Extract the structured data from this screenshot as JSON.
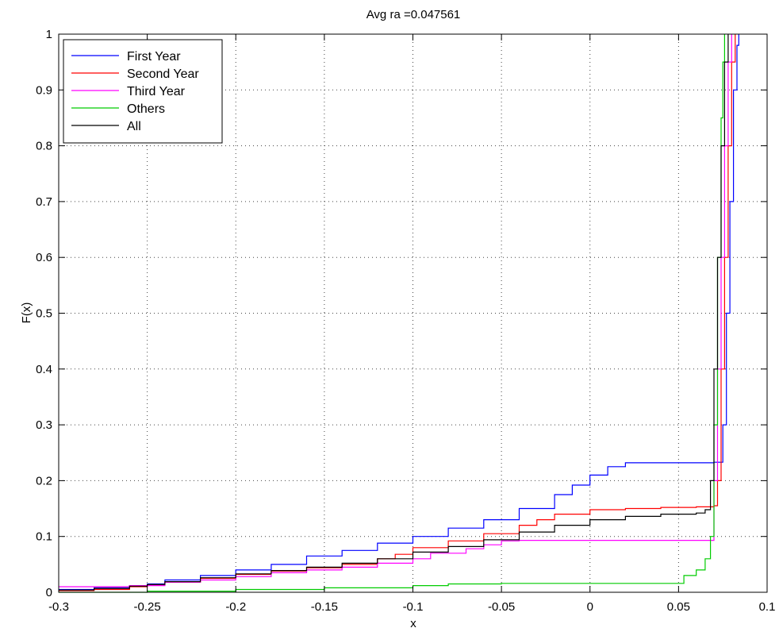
{
  "chart_data": {
    "type": "line",
    "title": "Avg ra =0.047561",
    "xlabel": "x",
    "ylabel": "F(x)",
    "xlim": [
      -0.3,
      0.1
    ],
    "ylim": [
      0,
      1
    ],
    "x_ticks": [
      "-0.3",
      "-0.25",
      "-0.2",
      "-0.15",
      "-0.1",
      "-0.05",
      "0",
      "0.05",
      "0.1"
    ],
    "x_tick_values": [
      -0.3,
      -0.25,
      -0.2,
      -0.15,
      -0.1,
      -0.05,
      0,
      0.05,
      0.1
    ],
    "y_ticks": [
      "0",
      "0.1",
      "0.2",
      "0.3",
      "0.4",
      "0.5",
      "0.6",
      "0.7",
      "0.8",
      "0.9",
      "1"
    ],
    "y_tick_values": [
      0,
      0.1,
      0.2,
      0.3,
      0.4,
      0.5,
      0.6,
      0.7,
      0.8,
      0.9,
      1
    ],
    "grid": true,
    "legend_position": "top-left",
    "series": [
      {
        "name": "First Year",
        "color": "#0000ff",
        "points": [
          [
            -0.3,
            0.005
          ],
          [
            -0.28,
            0.008
          ],
          [
            -0.26,
            0.012
          ],
          [
            -0.25,
            0.015
          ],
          [
            -0.24,
            0.022
          ],
          [
            -0.22,
            0.03
          ],
          [
            -0.2,
            0.04
          ],
          [
            -0.18,
            0.05
          ],
          [
            -0.16,
            0.065
          ],
          [
            -0.14,
            0.075
          ],
          [
            -0.12,
            0.088
          ],
          [
            -0.1,
            0.1
          ],
          [
            -0.08,
            0.115
          ],
          [
            -0.06,
            0.13
          ],
          [
            -0.04,
            0.15
          ],
          [
            -0.02,
            0.175
          ],
          [
            -0.01,
            0.192
          ],
          [
            0.0,
            0.21
          ],
          [
            0.01,
            0.225
          ],
          [
            0.02,
            0.232
          ],
          [
            0.04,
            0.232
          ],
          [
            0.06,
            0.232
          ],
          [
            0.07,
            0.233
          ],
          [
            0.075,
            0.3
          ],
          [
            0.077,
            0.5
          ],
          [
            0.079,
            0.7
          ],
          [
            0.081,
            0.9
          ],
          [
            0.083,
            0.98
          ],
          [
            0.084,
            1.0
          ]
        ]
      },
      {
        "name": "Second Year",
        "color": "#ff0000",
        "points": [
          [
            -0.3,
            0.003
          ],
          [
            -0.28,
            0.005
          ],
          [
            -0.26,
            0.01
          ],
          [
            -0.25,
            0.013
          ],
          [
            -0.24,
            0.018
          ],
          [
            -0.22,
            0.025
          ],
          [
            -0.2,
            0.032
          ],
          [
            -0.18,
            0.038
          ],
          [
            -0.16,
            0.044
          ],
          [
            -0.14,
            0.05
          ],
          [
            -0.12,
            0.06
          ],
          [
            -0.11,
            0.068
          ],
          [
            -0.1,
            0.08
          ],
          [
            -0.08,
            0.092
          ],
          [
            -0.06,
            0.105
          ],
          [
            -0.04,
            0.12
          ],
          [
            -0.03,
            0.13
          ],
          [
            -0.02,
            0.14
          ],
          [
            0.0,
            0.148
          ],
          [
            0.02,
            0.15
          ],
          [
            0.04,
            0.152
          ],
          [
            0.06,
            0.153
          ],
          [
            0.07,
            0.155
          ],
          [
            0.072,
            0.2
          ],
          [
            0.074,
            0.4
          ],
          [
            0.076,
            0.6
          ],
          [
            0.078,
            0.8
          ],
          [
            0.08,
            0.95
          ],
          [
            0.082,
            1.0
          ]
        ]
      },
      {
        "name": "Third Year",
        "color": "#ff00ff",
        "points": [
          [
            -0.3,
            0.01
          ],
          [
            -0.26,
            0.012
          ],
          [
            -0.24,
            0.018
          ],
          [
            -0.22,
            0.022
          ],
          [
            -0.2,
            0.028
          ],
          [
            -0.18,
            0.035
          ],
          [
            -0.16,
            0.04
          ],
          [
            -0.14,
            0.045
          ],
          [
            -0.12,
            0.052
          ],
          [
            -0.1,
            0.06
          ],
          [
            -0.09,
            0.07
          ],
          [
            -0.07,
            0.078
          ],
          [
            -0.06,
            0.085
          ],
          [
            -0.05,
            0.092
          ],
          [
            -0.04,
            0.093
          ],
          [
            -0.02,
            0.093
          ],
          [
            0.0,
            0.093
          ],
          [
            0.02,
            0.093
          ],
          [
            0.04,
            0.093
          ],
          [
            0.06,
            0.093
          ],
          [
            0.068,
            0.093
          ],
          [
            0.07,
            0.2
          ],
          [
            0.072,
            0.4
          ],
          [
            0.074,
            0.6
          ],
          [
            0.076,
            0.8
          ],
          [
            0.078,
            0.95
          ],
          [
            0.08,
            1.0
          ]
        ]
      },
      {
        "name": "Others",
        "color": "#00cc00",
        "points": [
          [
            -0.3,
            0.0
          ],
          [
            -0.25,
            0.002
          ],
          [
            -0.2,
            0.005
          ],
          [
            -0.15,
            0.008
          ],
          [
            -0.1,
            0.012
          ],
          [
            -0.08,
            0.015
          ],
          [
            -0.05,
            0.016
          ],
          [
            0.0,
            0.016
          ],
          [
            0.03,
            0.016
          ],
          [
            0.05,
            0.016
          ],
          [
            0.053,
            0.03
          ],
          [
            0.06,
            0.04
          ],
          [
            0.065,
            0.06
          ],
          [
            0.068,
            0.1
          ],
          [
            0.07,
            0.3
          ],
          [
            0.072,
            0.6
          ],
          [
            0.074,
            0.85
          ],
          [
            0.075,
            0.95
          ],
          [
            0.076,
            1.0
          ]
        ]
      },
      {
        "name": "All",
        "color": "#000000",
        "points": [
          [
            -0.3,
            0.004
          ],
          [
            -0.28,
            0.007
          ],
          [
            -0.26,
            0.011
          ],
          [
            -0.25,
            0.014
          ],
          [
            -0.24,
            0.019
          ],
          [
            -0.22,
            0.026
          ],
          [
            -0.2,
            0.033
          ],
          [
            -0.18,
            0.039
          ],
          [
            -0.16,
            0.045
          ],
          [
            -0.14,
            0.052
          ],
          [
            -0.12,
            0.06
          ],
          [
            -0.1,
            0.072
          ],
          [
            -0.08,
            0.082
          ],
          [
            -0.06,
            0.094
          ],
          [
            -0.04,
            0.108
          ],
          [
            -0.02,
            0.12
          ],
          [
            0.0,
            0.13
          ],
          [
            0.02,
            0.136
          ],
          [
            0.04,
            0.14
          ],
          [
            0.06,
            0.142
          ],
          [
            0.065,
            0.148
          ],
          [
            0.068,
            0.2
          ],
          [
            0.07,
            0.4
          ],
          [
            0.072,
            0.6
          ],
          [
            0.074,
            0.8
          ],
          [
            0.076,
            0.95
          ],
          [
            0.078,
            1.0
          ]
        ]
      }
    ]
  }
}
